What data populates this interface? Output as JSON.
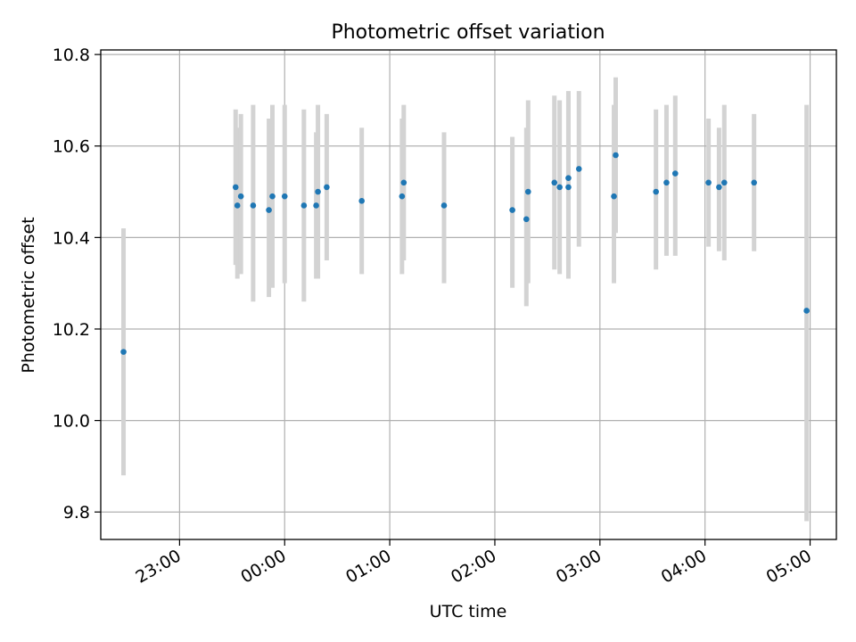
{
  "chart_data": {
    "type": "scatter",
    "title": "Photometric offset variation",
    "xlabel": "UTC time",
    "ylabel": "Photometric offset",
    "x_unit": "UTC time (HH:MM), points before 00:00 belong to the preceding day",
    "xlim": [
      "22:15",
      "05:15"
    ],
    "ylim": [
      9.74,
      10.81
    ],
    "xticks": [
      "23:00",
      "00:00",
      "01:00",
      "02:00",
      "03:00",
      "04:00",
      "05:00"
    ],
    "yticks": [
      "9.8",
      "10.0",
      "10.2",
      "10.4",
      "10.6",
      "10.8"
    ],
    "grid": true,
    "point_color": "#1f77b4",
    "errorbar_color": "#d3d3d3",
    "series": [
      {
        "points": [
          {
            "x": "22:28",
            "y": 10.15,
            "lo": 9.88,
            "hi": 10.42
          },
          {
            "x": "23:32",
            "y": 10.51,
            "lo": 10.34,
            "hi": 10.68
          },
          {
            "x": "23:33",
            "y": 10.47,
            "lo": 10.31,
            "hi": 10.64
          },
          {
            "x": "23:35",
            "y": 10.49,
            "lo": 10.32,
            "hi": 10.67
          },
          {
            "x": "23:42",
            "y": 10.47,
            "lo": 10.26,
            "hi": 10.69
          },
          {
            "x": "23:51",
            "y": 10.46,
            "lo": 10.27,
            "hi": 10.66
          },
          {
            "x": "23:53",
            "y": 10.49,
            "lo": 10.29,
            "hi": 10.69
          },
          {
            "x": "00:00",
            "y": 10.49,
            "lo": 10.3,
            "hi": 10.69
          },
          {
            "x": "00:11",
            "y": 10.47,
            "lo": 10.26,
            "hi": 10.68
          },
          {
            "x": "00:18",
            "y": 10.47,
            "lo": 10.31,
            "hi": 10.63
          },
          {
            "x": "00:19",
            "y": 10.5,
            "lo": 10.31,
            "hi": 10.69
          },
          {
            "x": "00:24",
            "y": 10.51,
            "lo": 10.35,
            "hi": 10.67
          },
          {
            "x": "00:44",
            "y": 10.48,
            "lo": 10.32,
            "hi": 10.64
          },
          {
            "x": "01:07",
            "y": 10.49,
            "lo": 10.32,
            "hi": 10.66
          },
          {
            "x": "01:08",
            "y": 10.52,
            "lo": 10.35,
            "hi": 10.69
          },
          {
            "x": "01:31",
            "y": 10.47,
            "lo": 10.3,
            "hi": 10.63
          },
          {
            "x": "02:10",
            "y": 10.46,
            "lo": 10.29,
            "hi": 10.62
          },
          {
            "x": "02:18",
            "y": 10.44,
            "lo": 10.25,
            "hi": 10.64
          },
          {
            "x": "02:19",
            "y": 10.5,
            "lo": 10.3,
            "hi": 10.7
          },
          {
            "x": "02:34",
            "y": 10.52,
            "lo": 10.33,
            "hi": 10.71
          },
          {
            "x": "02:37",
            "y": 10.51,
            "lo": 10.32,
            "hi": 10.7
          },
          {
            "x": "02:42",
            "y": 10.53,
            "lo": 10.34,
            "hi": 10.72
          },
          {
            "x": "02:42",
            "y": 10.51,
            "lo": 10.31,
            "hi": 10.71
          },
          {
            "x": "02:48",
            "y": 10.55,
            "lo": 10.38,
            "hi": 10.72
          },
          {
            "x": "03:08",
            "y": 10.49,
            "lo": 10.3,
            "hi": 10.69
          },
          {
            "x": "03:09",
            "y": 10.58,
            "lo": 10.41,
            "hi": 10.75
          },
          {
            "x": "03:32",
            "y": 10.5,
            "lo": 10.33,
            "hi": 10.68
          },
          {
            "x": "03:38",
            "y": 10.52,
            "lo": 10.36,
            "hi": 10.69
          },
          {
            "x": "03:43",
            "y": 10.54,
            "lo": 10.36,
            "hi": 10.71
          },
          {
            "x": "04:02",
            "y": 10.52,
            "lo": 10.38,
            "hi": 10.66
          },
          {
            "x": "04:08",
            "y": 10.51,
            "lo": 10.37,
            "hi": 10.64
          },
          {
            "x": "04:11",
            "y": 10.52,
            "lo": 10.35,
            "hi": 10.69
          },
          {
            "x": "04:28",
            "y": 10.52,
            "lo": 10.37,
            "hi": 10.67
          },
          {
            "x": "04:58",
            "y": 10.24,
            "lo": 9.78,
            "hi": 10.69
          }
        ]
      }
    ]
  }
}
